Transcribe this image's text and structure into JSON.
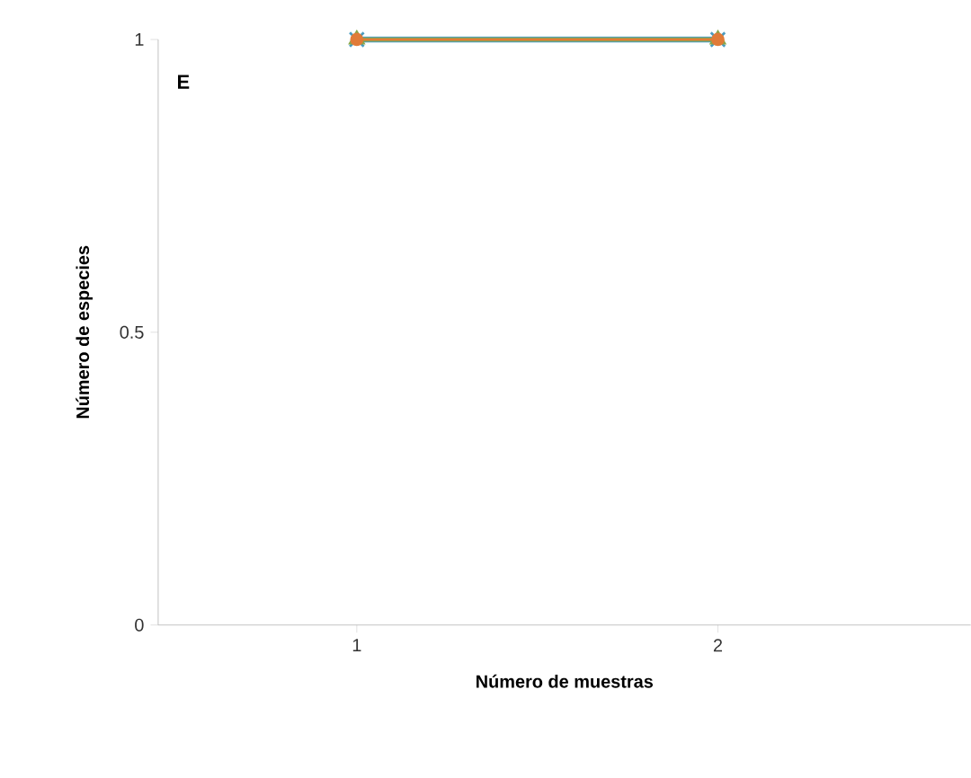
{
  "chart_data": {
    "type": "line",
    "xlabel": "Número de muestras",
    "ylabel": "Número de especies",
    "annotations": [
      "E"
    ],
    "x": [
      1,
      2
    ],
    "xlim": [
      0.45,
      2.7
    ],
    "xticks": [
      1,
      2
    ],
    "ylim": [
      0,
      1
    ],
    "yticks": [
      0,
      0.5,
      1
    ],
    "grid": false,
    "series": [
      {
        "color": "#4a9cc0",
        "values": [
          1,
          1
        ],
        "marker": "cross"
      },
      {
        "color": "#8aa64a",
        "values": [
          1,
          1
        ],
        "marker": "triangle"
      },
      {
        "color": "#e07b39",
        "values": [
          1,
          1
        ],
        "marker": "circle"
      }
    ]
  }
}
